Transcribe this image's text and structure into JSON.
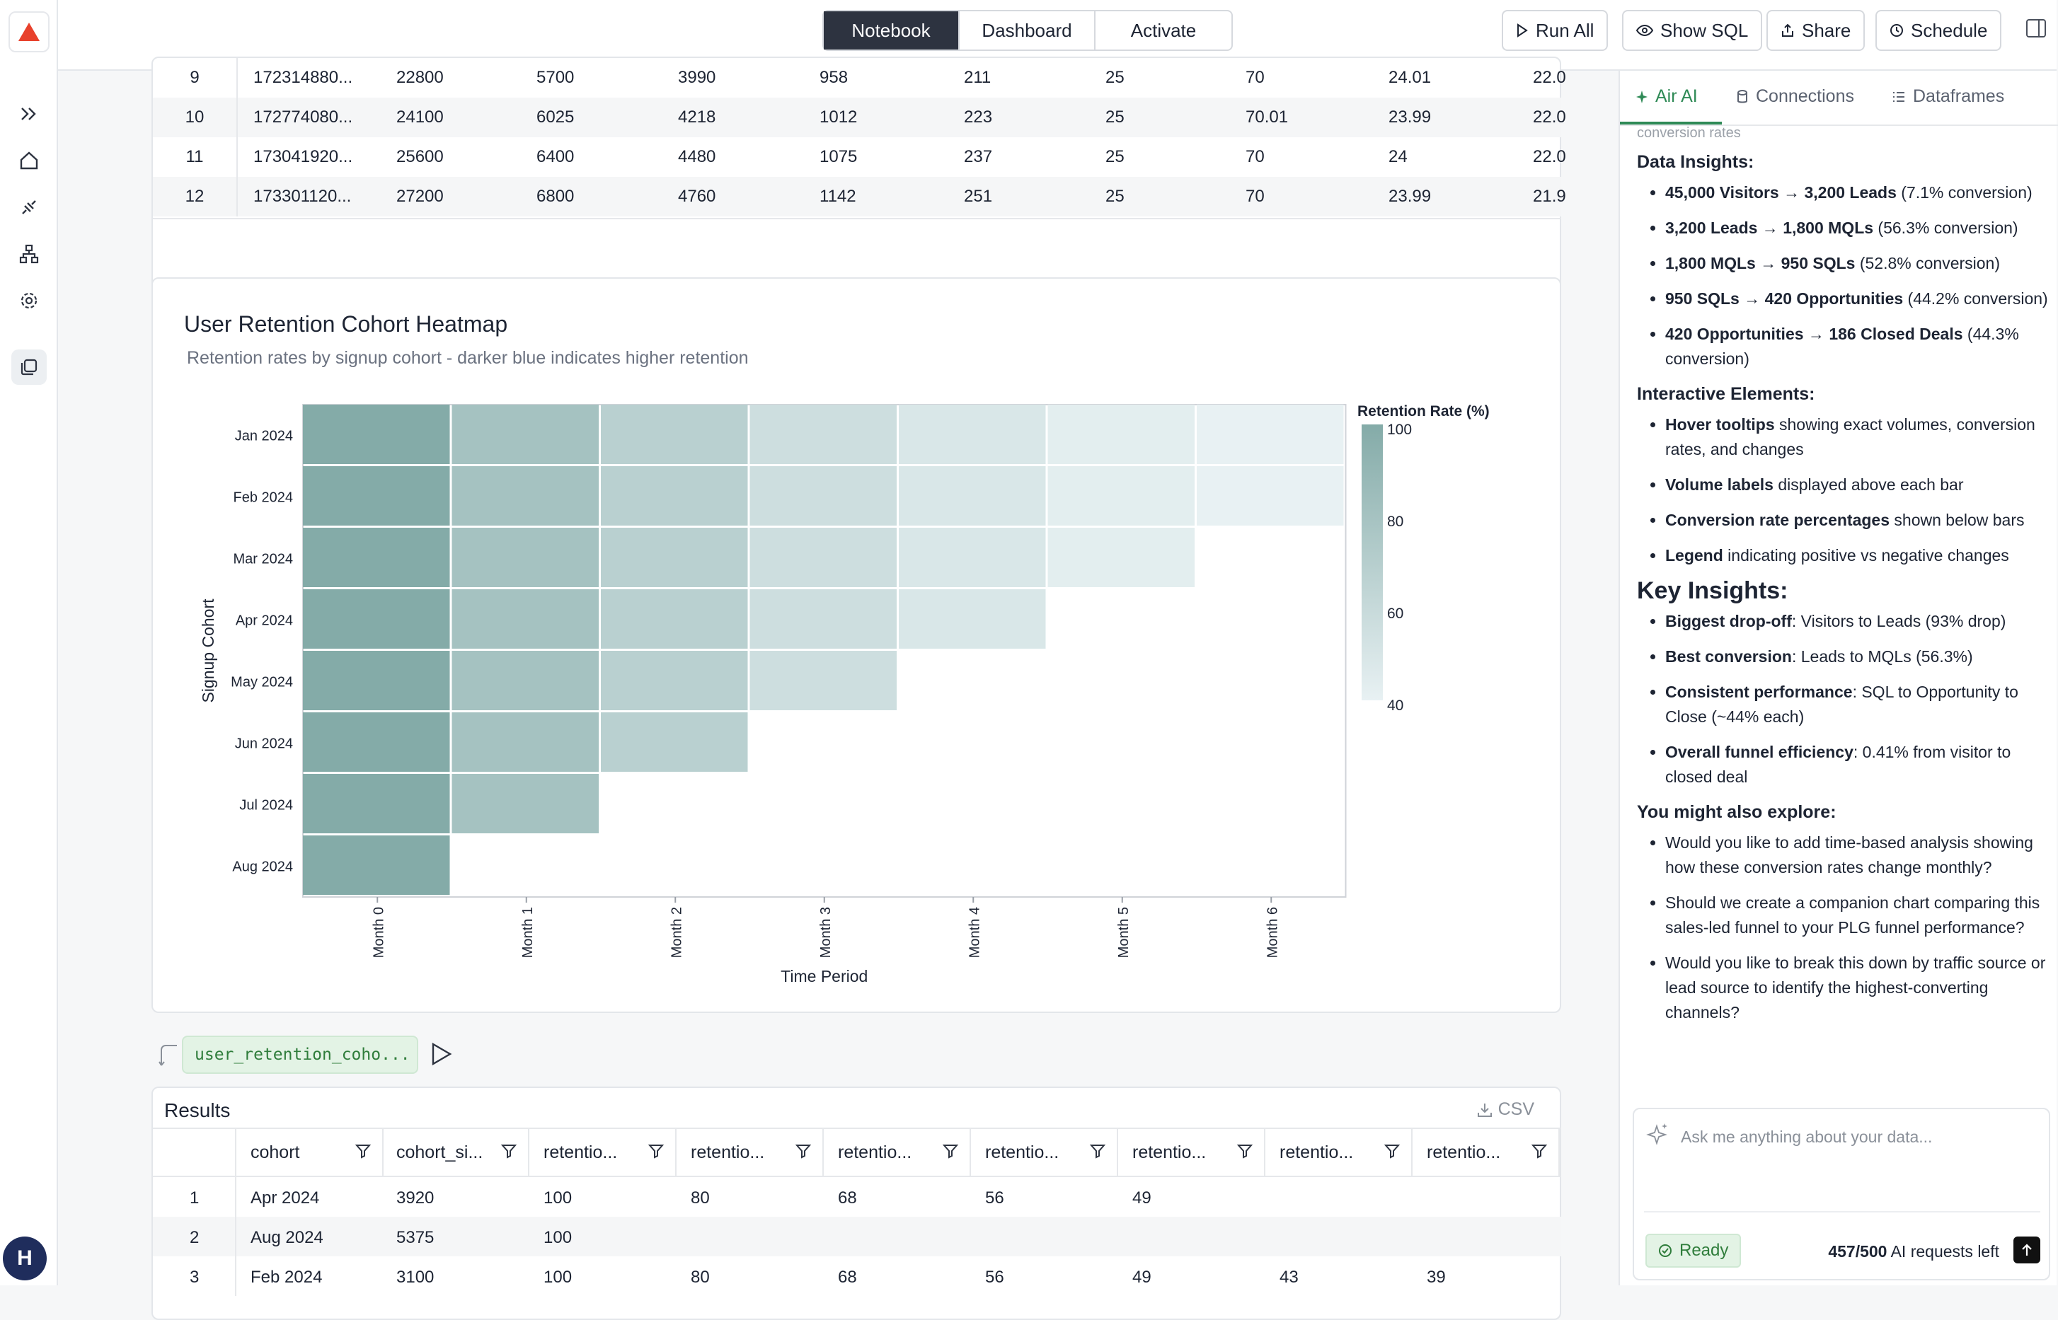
{
  "topbar": {
    "tabs": [
      "Notebook",
      "Dashboard",
      "Activate"
    ],
    "active_tab": "Notebook",
    "run_all": "Run All",
    "show_sql": "Show SQL",
    "share": "Share",
    "schedule": "Schedule"
  },
  "rail": {
    "avatar_initial": "H"
  },
  "top_table": {
    "rows": [
      {
        "idx": "9",
        "cells": [
          "172314880...",
          "22800",
          "5700",
          "3990",
          "958",
          "211",
          "25",
          "70",
          "24.01",
          "22.0"
        ]
      },
      {
        "idx": "10",
        "cells": [
          "172774080...",
          "24100",
          "6025",
          "4218",
          "1012",
          "223",
          "25",
          "70.01",
          "23.99",
          "22.0"
        ]
      },
      {
        "idx": "11",
        "cells": [
          "173041920...",
          "25600",
          "6400",
          "4480",
          "1075",
          "237",
          "25",
          "70",
          "24",
          "22.0"
        ]
      },
      {
        "idx": "12",
        "cells": [
          "173301120...",
          "27200",
          "6800",
          "4760",
          "1142",
          "251",
          "25",
          "70",
          "23.99",
          "21.9"
        ]
      }
    ]
  },
  "heatmap": {
    "title": "User Retention Cohort Heatmap",
    "subtitle": "Retention rates by signup cohort - darker blue indicates higher retention"
  },
  "chart_data": {
    "type": "heatmap",
    "title": "User Retention Cohort Heatmap",
    "subtitle": "Retention rates by signup cohort - darker blue indicates higher retention",
    "xlabel": "Time Period",
    "ylabel": "Signup Cohort",
    "x": [
      "Month 0",
      "Month 1",
      "Month 2",
      "Month 3",
      "Month 4",
      "Month 5",
      "Month 6"
    ],
    "y": [
      "Jan 2024",
      "Feb 2024",
      "Mar 2024",
      "Apr 2024",
      "May 2024",
      "Jun 2024",
      "Jul 2024",
      "Aug 2024"
    ],
    "values": [
      [
        100,
        80,
        68,
        56,
        49,
        43,
        39
      ],
      [
        100,
        80,
        68,
        56,
        49,
        43,
        39
      ],
      [
        100,
        80,
        68,
        56,
        49,
        43,
        null
      ],
      [
        100,
        80,
        68,
        56,
        49,
        null,
        null
      ],
      [
        100,
        80,
        68,
        56,
        null,
        null,
        null
      ],
      [
        100,
        80,
        68,
        null,
        null,
        null,
        null
      ],
      [
        100,
        80,
        null,
        null,
        null,
        null,
        null
      ],
      [
        100,
        null,
        null,
        null,
        null,
        null,
        null
      ]
    ],
    "legend_title": "Retention Rate (%)",
    "legend_ticks": [
      100,
      80,
      60,
      40
    ],
    "color_range": [
      40,
      100
    ],
    "color_low": "#e8f1f3",
    "color_high": "#84aba8"
  },
  "query": {
    "chip_label": "user_retention_coho..."
  },
  "results": {
    "title": "Results",
    "csv_label": "CSV",
    "columns": [
      "cohort",
      "cohort_si...",
      "retentio...",
      "retentio...",
      "retentio...",
      "retentio...",
      "retentio...",
      "retentio...",
      "retentio..."
    ],
    "rows": [
      {
        "idx": "1",
        "cells": [
          "Apr 2024",
          "3920",
          "100",
          "80",
          "68",
          "56",
          "49",
          "",
          ""
        ]
      },
      {
        "idx": "2",
        "cells": [
          "Aug 2024",
          "5375",
          "100",
          "",
          "",
          "",
          "",
          "",
          ""
        ]
      },
      {
        "idx": "3",
        "cells": [
          "Feb 2024",
          "3100",
          "100",
          "80",
          "68",
          "56",
          "49",
          "43",
          "39"
        ]
      }
    ]
  },
  "panel": {
    "tabs": [
      "Air AI",
      "Connections",
      "Dataframes"
    ],
    "faded_text": "conversion rates",
    "data_insights_heading": "Data Insights:",
    "data_insights": [
      {
        "bold": "45,000 Visitors → 3,200 Leads",
        "rest": " (7.1% conversion)"
      },
      {
        "bold": "3,200 Leads → 1,800 MQLs",
        "rest": " (56.3% conversion)"
      },
      {
        "bold": "1,800 MQLs → 950 SQLs",
        "rest": " (52.8% conversion)"
      },
      {
        "bold": "950 SQLs → 420 Opportunities",
        "rest": " (44.2% conversion)"
      },
      {
        "bold": "420 Opportunities → 186 Closed Deals",
        "rest": " (44.3% conversion)"
      }
    ],
    "interactive_heading": "Interactive Elements:",
    "interactive": [
      {
        "bold": "Hover tooltips",
        "rest": " showing exact volumes, conversion rates, and changes"
      },
      {
        "bold": "Volume labels",
        "rest": " displayed above each bar"
      },
      {
        "bold": "Conversion rate percentages",
        "rest": " shown below bars"
      },
      {
        "bold": "Legend",
        "rest": " indicating positive vs negative changes"
      }
    ],
    "key_heading": "Key Insights:",
    "key": [
      {
        "bold": "Biggest drop-off",
        "rest": ": Visitors to Leads (93% drop)"
      },
      {
        "bold": "Best conversion",
        "rest": ": Leads to MQLs (56.3%)"
      },
      {
        "bold": "Consistent performance",
        "rest": ": SQL to Opportunity to Close (~44% each)"
      },
      {
        "bold": "Overall funnel efficiency",
        "rest": ": 0.41% from visitor to closed deal"
      }
    ],
    "explore_heading": "You might also explore:",
    "explore": [
      "Would you like to add time-based analysis showing how these conversion rates change monthly?",
      "Should we create a companion chart comparing this sales-led funnel to your PLG funnel performance?",
      "Would you like to break this down by traffic source or lead source to identify the highest-converting channels?"
    ],
    "composer_placeholder": "Ask me anything about your data...",
    "ready_label": "Ready",
    "quota_count": "457/500",
    "quota_label": " AI requests left"
  }
}
